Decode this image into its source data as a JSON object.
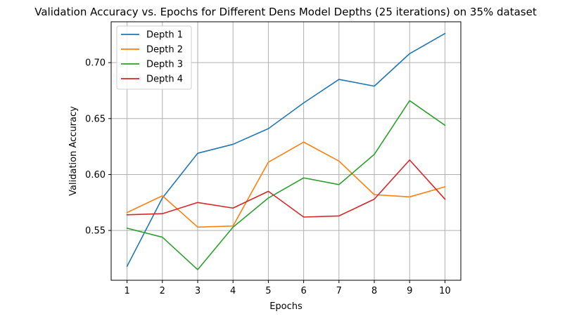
{
  "chart_data": {
    "type": "line",
    "title": "Validation Accuracy vs. Epochs for Different Dens Model Depths (25 iterations) on 35% dataset",
    "xlabel": "Epochs",
    "ylabel": "Validation Accuracy",
    "x": [
      1,
      2,
      3,
      4,
      5,
      6,
      7,
      8,
      9,
      10
    ],
    "xticks": [
      "1",
      "2",
      "3",
      "4",
      "5",
      "6",
      "7",
      "8",
      "9",
      "10"
    ],
    "yticks": [
      "0.55",
      "0.60",
      "0.65",
      "0.70"
    ],
    "xlim": [
      0.55,
      10.45
    ],
    "ylim": [
      0.5055,
      0.7365
    ],
    "grid": true,
    "legend_position": "top-left",
    "series": [
      {
        "name": "Depth 1",
        "color": "#1f77b4",
        "values": [
          0.518,
          0.579,
          0.619,
          0.627,
          0.641,
          0.664,
          0.685,
          0.679,
          0.708,
          0.726
        ]
      },
      {
        "name": "Depth 2",
        "color": "#ff7f0e",
        "values": [
          0.566,
          0.581,
          0.553,
          0.554,
          0.611,
          0.629,
          0.612,
          0.582,
          0.58,
          0.589
        ]
      },
      {
        "name": "Depth 3",
        "color": "#2ca02c",
        "values": [
          0.552,
          0.544,
          0.515,
          0.553,
          0.579,
          0.597,
          0.591,
          0.618,
          0.666,
          0.644
        ]
      },
      {
        "name": "Depth 4",
        "color": "#d62728",
        "values": [
          0.564,
          0.565,
          0.575,
          0.57,
          0.585,
          0.562,
          0.563,
          0.578,
          0.613,
          0.578
        ]
      }
    ]
  }
}
